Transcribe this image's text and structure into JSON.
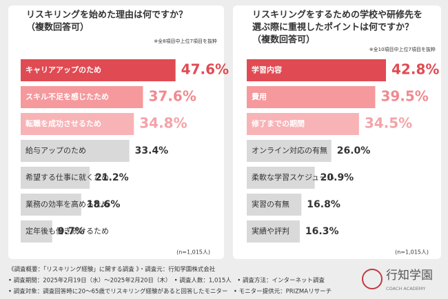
{
  "chart_data": [
    {
      "type": "bar",
      "orientation": "horizontal",
      "title_lines": [
        "リスキリングを始めた理由は何ですか？",
        "（複数回答可）"
      ],
      "note": "※全8項目中上位7項目を抜粋",
      "sample": "(n=1,015人)",
      "categories": [
        "キャリアアップのため",
        "スキル不足を感じたため",
        "転職を成功させるため",
        "給与アップのため",
        "希望する仕事に就くため",
        "業務の効率を高めるため",
        "定年後も働き続けるため"
      ],
      "values": [
        47.6,
        37.6,
        34.8,
        33.4,
        21.2,
        18.6,
        9.7
      ],
      "value_labels": [
        "47.6%",
        "37.6%",
        "34.8%",
        "33.4%",
        "21.2%",
        "18.6%",
        "9.7%"
      ],
      "colors": [
        "#e04b53",
        "#f5999d",
        "#f7b3b6",
        "#d9d9d9",
        "#d9d9d9",
        "#d9d9d9",
        "#d9d9d9"
      ],
      "value_label_colors": [
        "#e04b53",
        "#f08a90",
        "#f4a3a8",
        "#333333",
        "#333333",
        "#333333",
        "#333333"
      ]
    },
    {
      "type": "bar",
      "orientation": "horizontal",
      "title_lines": [
        "リスキリングをするための学校や研修先を",
        "選ぶ際に重視したポイントは何ですか？",
        "（複数回答可）"
      ],
      "note": "※全10項目中上位7項目を抜粋",
      "sample": "(n=1,015人)",
      "categories": [
        "学習内容",
        "費用",
        "修了までの期間",
        "オンライン対応の有無",
        "柔軟な学習スケジュール",
        "実習の有無",
        "実績や評判"
      ],
      "values": [
        42.8,
        39.5,
        34.5,
        26.0,
        20.9,
        16.8,
        16.3
      ],
      "value_labels": [
        "42.8%",
        "39.5%",
        "34.5%",
        "26.0%",
        "20.9%",
        "16.8%",
        "16.3%"
      ],
      "colors": [
        "#e04b53",
        "#f5999d",
        "#f7b3b6",
        "#d9d9d9",
        "#d9d9d9",
        "#d9d9d9",
        "#d9d9d9"
      ],
      "value_label_colors": [
        "#e04b53",
        "#f08a90",
        "#f4a3a8",
        "#333333",
        "#333333",
        "#333333",
        "#333333"
      ]
    }
  ],
  "footer": [
    "《調査概要：「リスキリング経験」に関する調査 》・調査元：行知学園株式会社",
    "• 調査期間：2025年2月19日（水）〜2025年2月20日（木）　• 調査人数：1,015人　• 調査方法：インターネット調査",
    "• 調査対象：調査回答時に20〜65歳でリスキリング経験があると回答したモニター　• モニター提供元：PRIZMAリサーチ"
  ],
  "logo": {
    "name": "行知学園",
    "sub": "COACH ACADEMY"
  }
}
